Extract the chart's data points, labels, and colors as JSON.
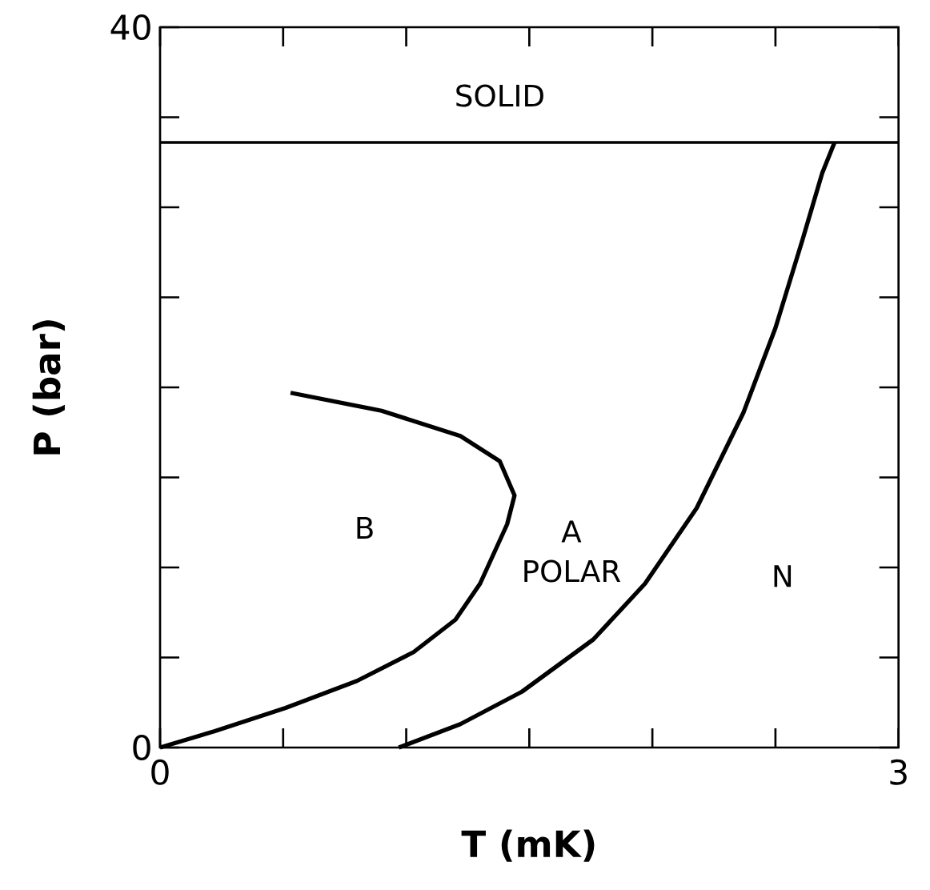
{
  "chart_data": {
    "type": "line",
    "xlabel": "T (mK)",
    "ylabel": "P (bar)",
    "xlim": [
      0,
      3
    ],
    "ylim": [
      0,
      40
    ],
    "xticks": [
      0,
      {
        "value": 0.5,
        "label": null
      },
      {
        "value": 1,
        "label": null
      },
      {
        "value": 1.5,
        "label": null
      },
      {
        "value": 2,
        "label": null
      },
      {
        "value": 2.5,
        "label": null
      },
      3
    ],
    "yticks": [
      0,
      {
        "value": 5,
        "label": null
      },
      {
        "value": 10,
        "label": null
      },
      {
        "value": 15,
        "label": null
      },
      {
        "value": 20,
        "label": null
      },
      {
        "value": 25,
        "label": null
      },
      {
        "value": 30,
        "label": null
      },
      {
        "value": 35,
        "label": null
      },
      40
    ],
    "series": [
      {
        "color": "#000000",
        "x": [
          0.53,
          0.9,
          1.22,
          1.38,
          1.44,
          1.41,
          1.3,
          1.2,
          1.03,
          0.8,
          0.51,
          0.22,
          0
        ],
        "values": [
          19.7,
          18.7,
          17.3,
          15.9,
          14.0,
          12.4,
          9.1,
          7.1,
          5.3,
          3.7,
          2.2,
          0.9,
          0
        ]
      },
      {
        "color": "#000000",
        "x": [
          0.97,
          1.22,
          1.47,
          1.76,
          1.97,
          2.18,
          2.37,
          2.5,
          2.61,
          2.69,
          2.74
        ],
        "values": [
          0,
          1.3,
          3.1,
          6.0,
          9.1,
          13.3,
          18.6,
          23.3,
          28.2,
          31.9,
          33.6
        ]
      }
    ],
    "ref_lines": [
      {
        "axis": "y",
        "value": 33.6,
        "color": "#000000"
      }
    ],
    "annotations": [
      "SOLID",
      "B",
      "A",
      "POLAR",
      "N"
    ],
    "marker": "none",
    "line_style": "solid"
  }
}
